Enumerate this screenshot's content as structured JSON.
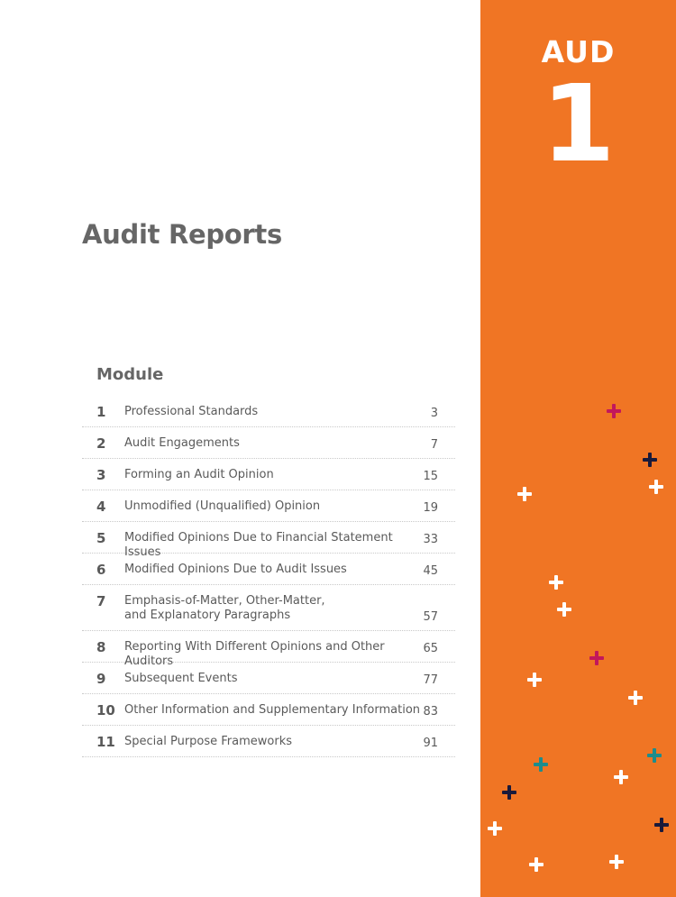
{
  "sidebar": {
    "section_code": "AUD",
    "section_number": "1",
    "accent_color": "#f07524",
    "decoration_colors": [
      "#c2185b",
      "#1a1a3a",
      "#ffffff",
      "#1e8c8c"
    ]
  },
  "title": "Audit Reports",
  "module_heading": "Module",
  "modules": [
    {
      "num": "1",
      "title": "Professional Standards",
      "page": "3"
    },
    {
      "num": "2",
      "title": "Audit Engagements",
      "page": "7"
    },
    {
      "num": "3",
      "title": "Forming an Audit Opinion",
      "page": "15"
    },
    {
      "num": "4",
      "title": "Unmodified (Unqualified) Opinion",
      "page": "19"
    },
    {
      "num": "5",
      "title": "Modified Opinions Due to Financial Statement Issues",
      "page": "33"
    },
    {
      "num": "6",
      "title": "Modified Opinions Due to Audit Issues",
      "page": "45"
    },
    {
      "num": "7",
      "title": "Emphasis-of-Matter, Other-Matter, and Explanatory Paragraphs",
      "page": "57"
    },
    {
      "num": "8",
      "title": "Reporting With Different Opinions and Other Auditors",
      "page": "65"
    },
    {
      "num": "9",
      "title": "Subsequent Events",
      "page": "77"
    },
    {
      "num": "10",
      "title": "Other Information and Supplementary Information",
      "page": "83"
    },
    {
      "num": "11",
      "title": "Special Purpose Frameworks",
      "page": "91"
    }
  ]
}
